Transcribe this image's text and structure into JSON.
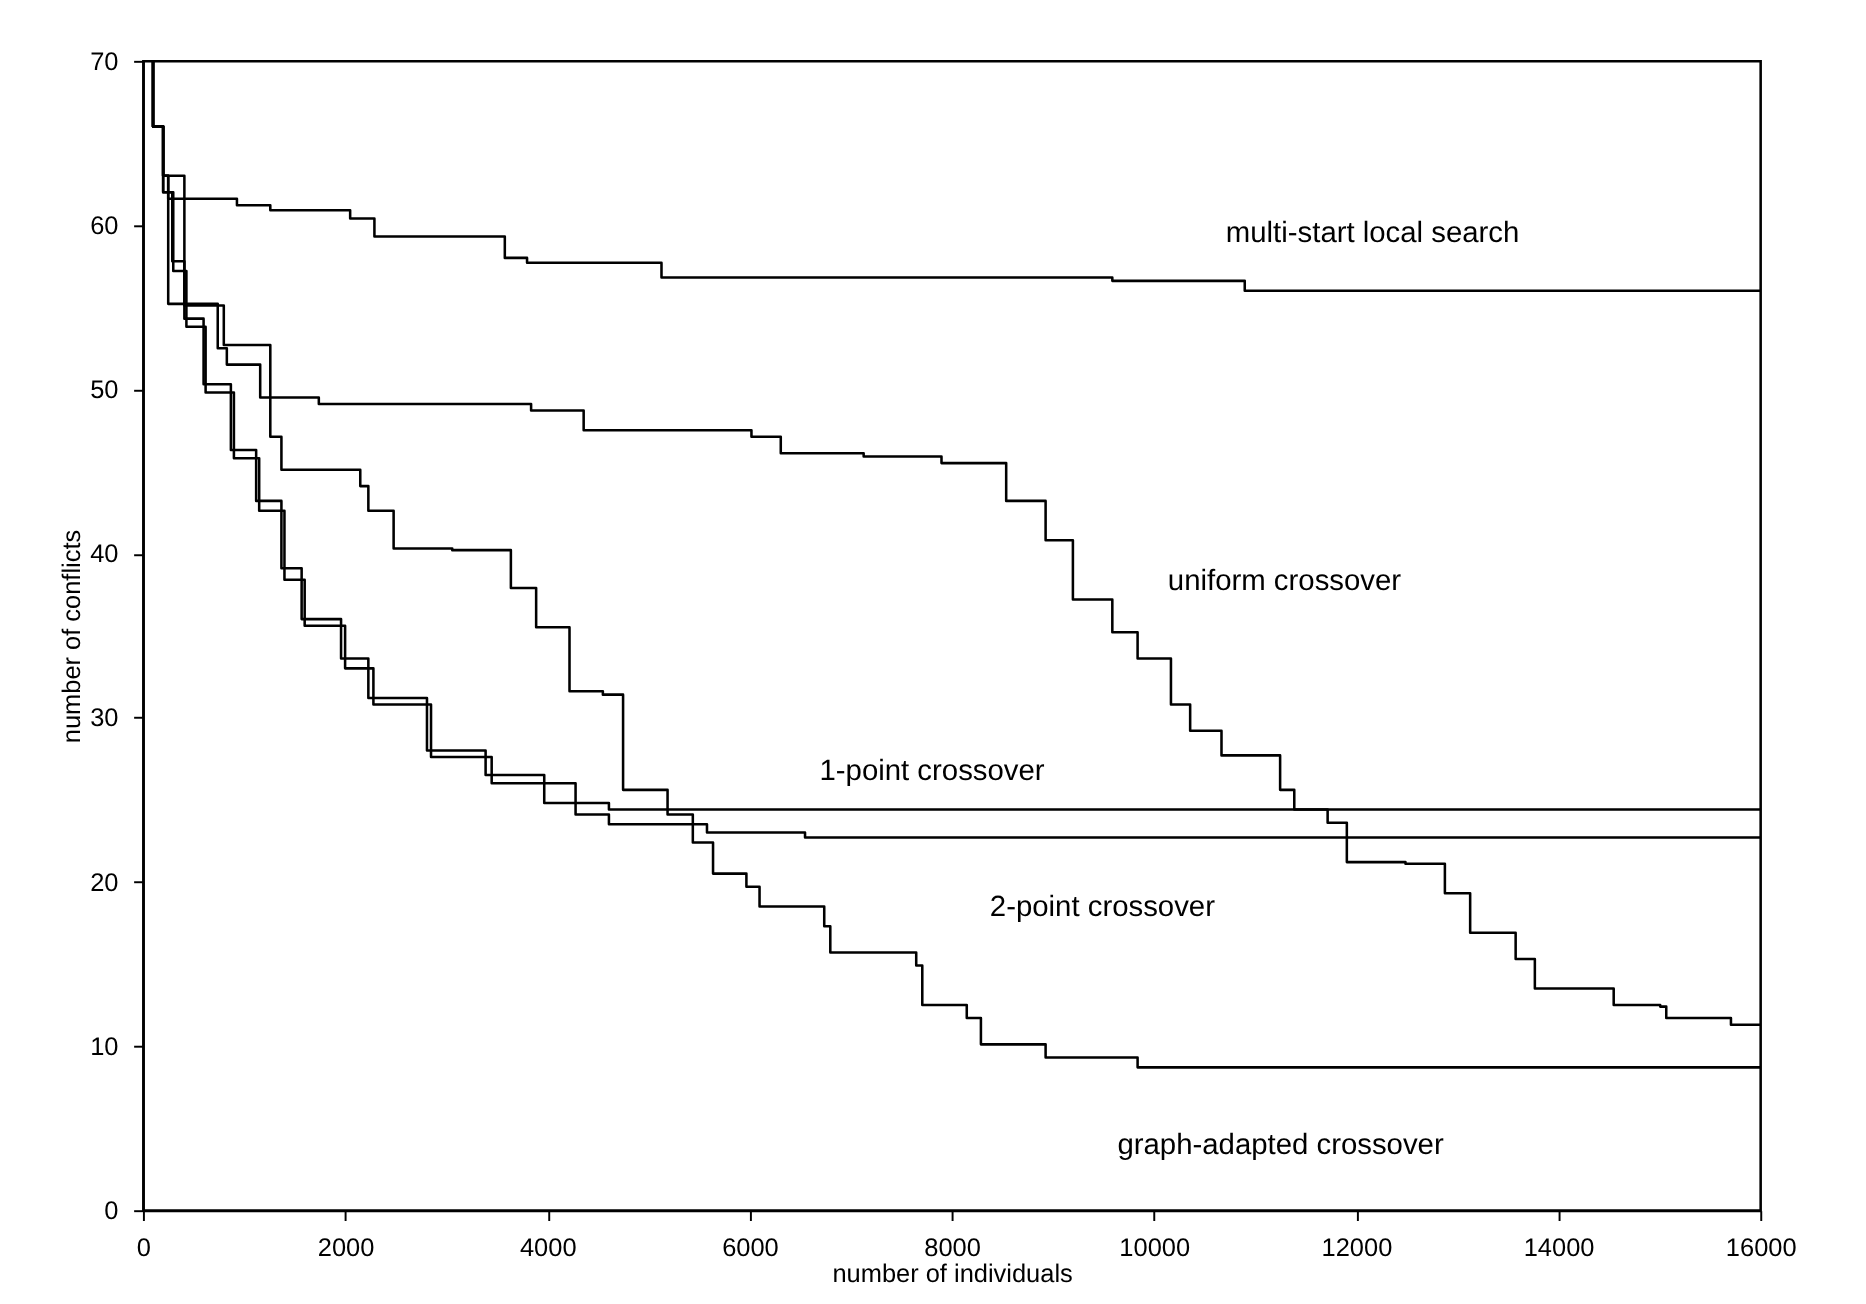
{
  "chart_data": {
    "type": "step",
    "xlabel": "number of individuals",
    "ylabel": "number of conflicts",
    "xlim": [
      0,
      16000
    ],
    "ylim": [
      0,
      70
    ],
    "xticks": [
      0,
      2000,
      4000,
      6000,
      8000,
      10000,
      12000,
      14000,
      16000
    ],
    "yticks": [
      0,
      10,
      20,
      30,
      40,
      50,
      60,
      70
    ],
    "grid": false,
    "marker": "none",
    "line_style": "solid",
    "series": [
      {
        "name": "multi-start local search",
        "color": "#000000",
        "x": [
          0,
          100,
          200,
          250,
          930,
          1260,
          2050,
          2290,
          3580,
          3800,
          5130,
          9590,
          10900,
          16000
        ],
        "values": [
          70,
          66,
          63,
          61.6,
          61.2,
          60.9,
          60.4,
          59.3,
          58.0,
          57.7,
          56.8,
          56.6,
          56.0,
          56.0
        ]
      },
      {
        "name": "uniform crossover",
        "color": "#000000",
        "x": [
          0,
          100,
          200,
          250,
          740,
          830,
          1160,
          1740,
          3840,
          4360,
          6020,
          6310,
          7130,
          7900,
          8290,
          8540,
          8930,
          9200,
          9590,
          9840,
          10170,
          10360,
          10670,
          11250,
          11390,
          11720,
          11910,
          12490,
          12880,
          13130,
          13580,
          13770,
          14300,
          14550,
          15010,
          15070,
          15590,
          15710,
          16000
        ],
        "values": [
          70,
          66,
          63,
          55.2,
          52.5,
          51.5,
          49.5,
          49.1,
          48.7,
          47.5,
          47.1,
          46.1,
          45.9,
          45.5,
          45.5,
          43.2,
          40.8,
          37.2,
          35.2,
          33.6,
          30.8,
          29.2,
          27.7,
          25.6,
          24.4,
          23.6,
          21.2,
          21.1,
          19.3,
          16.9,
          15.3,
          13.5,
          13.5,
          12.5,
          12.4,
          11.7,
          11.7,
          11.3,
          11.3
        ]
      },
      {
        "name": "1-point crossover",
        "color": "#000000",
        "x": [
          0,
          100,
          200,
          290,
          410,
          600,
          870,
          1120,
          1370,
          1570,
          1960,
          2230,
          2810,
          3390,
          3970,
          4610,
          16000
        ],
        "values": [
          70,
          66,
          62,
          57.8,
          54.3,
          50.3,
          46.3,
          43.2,
          39.1,
          36.0,
          33.6,
          31.2,
          28.0,
          26.5,
          24.8,
          24.4,
          24.4
        ]
      },
      {
        "name": "2-point crossover",
        "color": "#000000",
        "x": [
          0,
          100,
          200,
          300,
          430,
          620,
          900,
          1150,
          1400,
          1600,
          2000,
          2280,
          2850,
          3450,
          4280,
          4610,
          5580,
          6550,
          16000
        ],
        "values": [
          70,
          66,
          62,
          57.2,
          53.8,
          49.8,
          45.8,
          42.6,
          38.4,
          35.6,
          33.0,
          30.8,
          27.6,
          26.0,
          24.1,
          23.5,
          23.0,
          22.7,
          22.7
        ]
      },
      {
        "name": "graph-adapted crossover",
        "color": "#000000",
        "x": [
          0,
          100,
          200,
          410,
          800,
          1260,
          1370,
          2150,
          2230,
          2420,
          2480,
          3060,
          3640,
          3890,
          4220,
          4550,
          4750,
          5190,
          5440,
          5640,
          5970,
          6100,
          6740,
          6800,
          7650,
          7710,
          8150,
          8290,
          8930,
          9840,
          16000
        ],
        "values": [
          70,
          66,
          63,
          55.1,
          52.7,
          47.1,
          45.1,
          44.1,
          42.6,
          42.6,
          40.3,
          40.2,
          37.9,
          35.5,
          31.6,
          31.4,
          25.6,
          24.1,
          22.4,
          20.5,
          19.7,
          18.5,
          17.3,
          15.7,
          14.9,
          12.5,
          11.7,
          10.1,
          9.3,
          8.7,
          8.7
        ]
      }
    ]
  }
}
